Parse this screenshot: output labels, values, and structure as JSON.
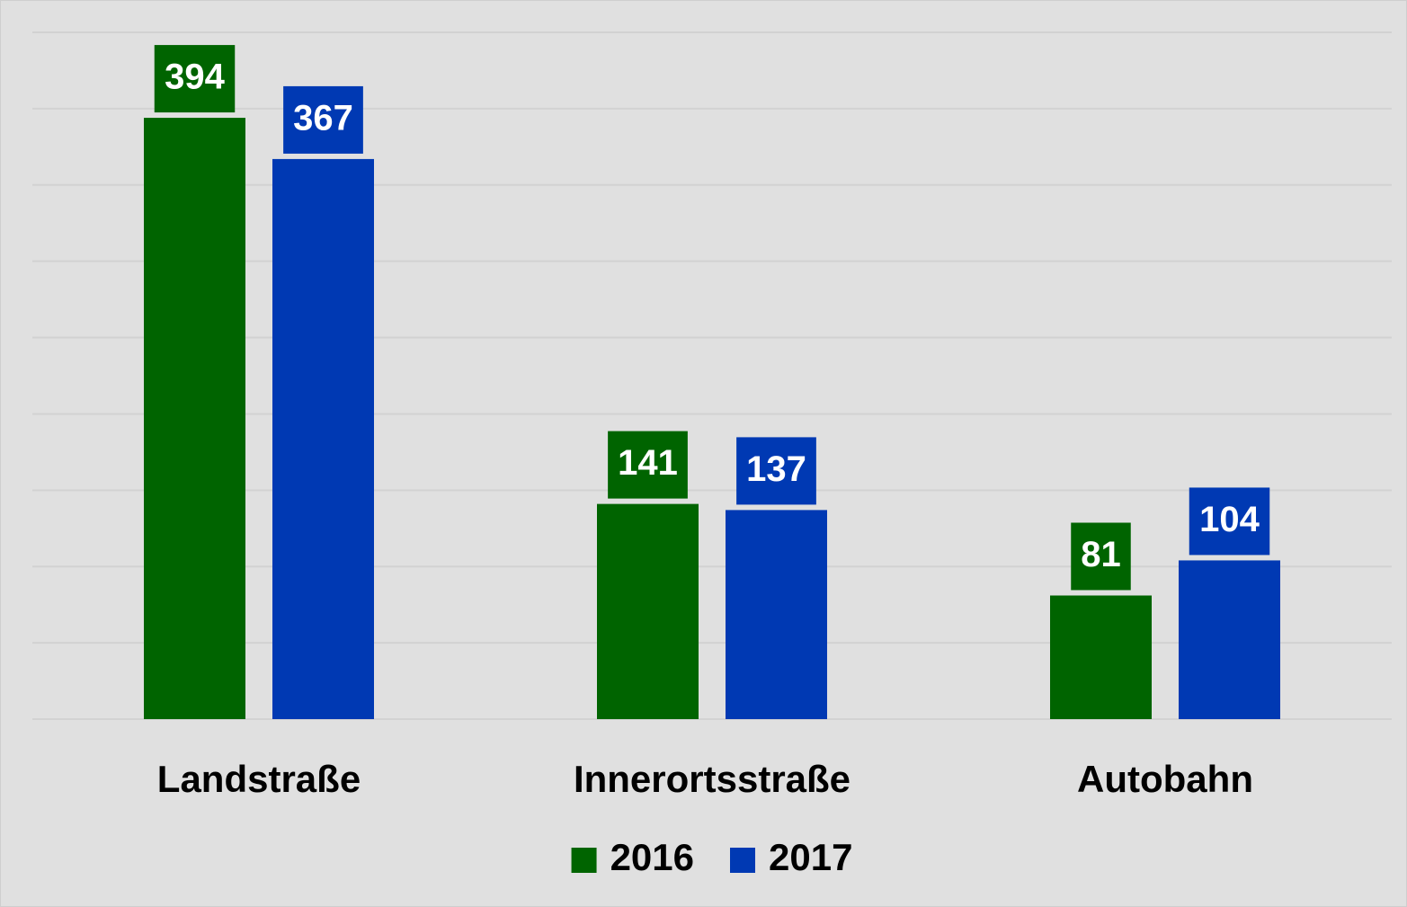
{
  "chart_data": {
    "type": "bar",
    "categories": [
      "Landstraße",
      "Innerortsstraße",
      "Autobahn"
    ],
    "series": [
      {
        "name": "2016",
        "color": "#006400",
        "values": [
          394,
          141,
          81
        ]
      },
      {
        "name": "2017",
        "color": "#0039b3",
        "values": [
          367,
          137,
          104
        ]
      }
    ],
    "ylim": [
      0,
      450
    ],
    "yticks": [
      0,
      50,
      100,
      150,
      200,
      250,
      300,
      350,
      400,
      450
    ],
    "grid": true,
    "legend": "bottom",
    "data_labels": true
  }
}
